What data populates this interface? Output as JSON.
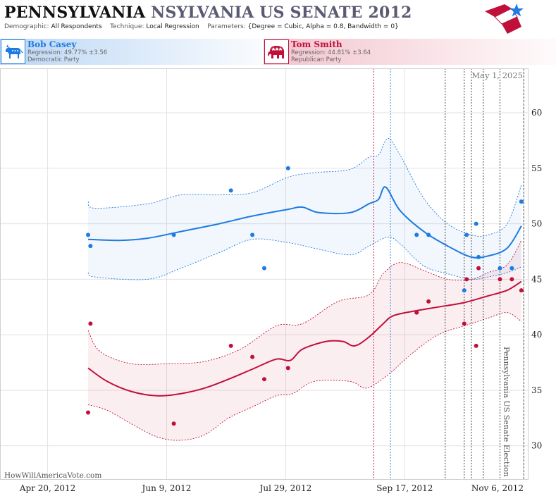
{
  "header": {
    "title_part1": "PENNSYLVANIA",
    "title_part2": "NSYLVANIA US SENATE 2012",
    "demographic_label": "Demographic:",
    "demographic_value": "All Respondents",
    "technique_label": "Technique:",
    "technique_value": "Local Regression",
    "parameters_label": "Parameters:",
    "parameters_value": "{Degree = Cubic, Alpha = 0.8, Bandwidth = 0}"
  },
  "candidates": {
    "dem": {
      "name": "Bob Casey",
      "regression": "Regression: 49.77% ±3.56",
      "party": "Democratic Party",
      "color": "#1e7be0"
    },
    "rep": {
      "name": "Tom Smith",
      "regression": "Regression: 44.81% ±3.64",
      "party": "Republican Party",
      "color": "#c0103a"
    }
  },
  "chart_data": {
    "type": "scatter",
    "date_label": "May 1, 2025",
    "watermark": "HowWillAmericaVote.com",
    "election_label": "Pennsylvania US Senate Election",
    "x_ticks": [
      "2012-04-20",
      "2012-06-09",
      "2012-07-29",
      "2012-09-17",
      "2012-11-06"
    ],
    "x_tick_labels": [
      "Apr 20, 2012",
      "Jun 9, 2012",
      "Jul 29, 2012",
      "Sep 17, 2012",
      "Nov 6, 2012"
    ],
    "xlim": [
      "2012-03-31",
      "2012-11-08"
    ],
    "y_ticks": [
      30,
      35,
      40,
      45,
      50,
      55,
      60
    ],
    "ylim": [
      27,
      64
    ],
    "grid": true,
    "election_day": "2012-11-06",
    "event_lines": [
      {
        "date": "2012-09-04",
        "color": "#c0103a"
      },
      {
        "date": "2012-09-11",
        "color": "#1e7be0"
      },
      {
        "date": "2012-10-04",
        "color": "#333333"
      },
      {
        "date": "2012-10-12",
        "color": "#333333"
      },
      {
        "date": "2012-10-15",
        "color": "#333333"
      },
      {
        "date": "2012-10-20",
        "color": "#333333"
      },
      {
        "date": "2012-10-27",
        "color": "#333333"
      }
    ],
    "series": [
      {
        "name": "Bob Casey",
        "color": "#1e7be0",
        "points": [
          {
            "x": "2012-05-07",
            "y": 49
          },
          {
            "x": "2012-05-08",
            "y": 48
          },
          {
            "x": "2012-06-12",
            "y": 49
          },
          {
            "x": "2012-07-06",
            "y": 53
          },
          {
            "x": "2012-07-15",
            "y": 49
          },
          {
            "x": "2012-07-20",
            "y": 46
          },
          {
            "x": "2012-07-30",
            "y": 55
          },
          {
            "x": "2012-09-22",
            "y": 49
          },
          {
            "x": "2012-09-27",
            "y": 49
          },
          {
            "x": "2012-10-12",
            "y": 44
          },
          {
            "x": "2012-10-13",
            "y": 49
          },
          {
            "x": "2012-10-17",
            "y": 50
          },
          {
            "x": "2012-10-18",
            "y": 47
          },
          {
            "x": "2012-10-27",
            "y": 46
          },
          {
            "x": "2012-11-01",
            "y": 46
          },
          {
            "x": "2012-11-05",
            "y": 52
          }
        ],
        "trend": [
          {
            "x": "2012-05-07",
            "y": 48.6
          },
          {
            "x": "2012-05-20",
            "y": 48.5
          },
          {
            "x": "2012-06-01",
            "y": 48.7
          },
          {
            "x": "2012-06-15",
            "y": 49.3
          },
          {
            "x": "2012-07-01",
            "y": 50.0
          },
          {
            "x": "2012-07-15",
            "y": 50.7
          },
          {
            "x": "2012-07-30",
            "y": 51.3
          },
          {
            "x": "2012-08-05",
            "y": 51.5
          },
          {
            "x": "2012-08-12",
            "y": 51.0
          },
          {
            "x": "2012-08-25",
            "y": 51.0
          },
          {
            "x": "2012-09-02",
            "y": 51.8
          },
          {
            "x": "2012-09-06",
            "y": 52.2
          },
          {
            "x": "2012-09-09",
            "y": 53.3
          },
          {
            "x": "2012-09-15",
            "y": 51.2
          },
          {
            "x": "2012-09-25",
            "y": 49.3
          },
          {
            "x": "2012-10-05",
            "y": 48.0
          },
          {
            "x": "2012-10-15",
            "y": 47.0
          },
          {
            "x": "2012-10-22",
            "y": 47.1
          },
          {
            "x": "2012-10-30",
            "y": 47.8
          },
          {
            "x": "2012-11-05",
            "y": 49.8
          }
        ],
        "upper": [
          {
            "x": "2012-05-07",
            "y": 52.0
          },
          {
            "x": "2012-05-10",
            "y": 51.4
          },
          {
            "x": "2012-06-01",
            "y": 51.8
          },
          {
            "x": "2012-06-15",
            "y": 52.6
          },
          {
            "x": "2012-07-01",
            "y": 52.6
          },
          {
            "x": "2012-07-15",
            "y": 52.8
          },
          {
            "x": "2012-07-30",
            "y": 54.2
          },
          {
            "x": "2012-08-10",
            "y": 54.6
          },
          {
            "x": "2012-08-25",
            "y": 54.9
          },
          {
            "x": "2012-09-02",
            "y": 56.0
          },
          {
            "x": "2012-09-06",
            "y": 56.2
          },
          {
            "x": "2012-09-10",
            "y": 57.7
          },
          {
            "x": "2012-09-15",
            "y": 56.2
          },
          {
            "x": "2012-09-25",
            "y": 52.3
          },
          {
            "x": "2012-10-05",
            "y": 50.0
          },
          {
            "x": "2012-10-15",
            "y": 49.0
          },
          {
            "x": "2012-10-22",
            "y": 49.0
          },
          {
            "x": "2012-10-30",
            "y": 50.0
          },
          {
            "x": "2012-11-05",
            "y": 53.5
          }
        ],
        "lower": [
          {
            "x": "2012-05-07",
            "y": 45.6
          },
          {
            "x": "2012-05-10",
            "y": 45.2
          },
          {
            "x": "2012-06-01",
            "y": 45.0
          },
          {
            "x": "2012-06-15",
            "y": 46.0
          },
          {
            "x": "2012-07-01",
            "y": 47.4
          },
          {
            "x": "2012-07-15",
            "y": 48.6
          },
          {
            "x": "2012-07-30",
            "y": 48.3
          },
          {
            "x": "2012-08-10",
            "y": 47.8
          },
          {
            "x": "2012-08-25",
            "y": 47.2
          },
          {
            "x": "2012-09-02",
            "y": 48.0
          },
          {
            "x": "2012-09-10",
            "y": 48.8
          },
          {
            "x": "2012-09-15",
            "y": 48.2
          },
          {
            "x": "2012-09-25",
            "y": 46.2
          },
          {
            "x": "2012-10-05",
            "y": 45.5
          },
          {
            "x": "2012-10-15",
            "y": 45.0
          },
          {
            "x": "2012-10-22",
            "y": 45.2
          },
          {
            "x": "2012-10-30",
            "y": 45.6
          },
          {
            "x": "2012-11-05",
            "y": 46.1
          }
        ]
      },
      {
        "name": "Tom Smith",
        "color": "#c0103a",
        "points": [
          {
            "x": "2012-05-07",
            "y": 33
          },
          {
            "x": "2012-05-08",
            "y": 41
          },
          {
            "x": "2012-06-12",
            "y": 32
          },
          {
            "x": "2012-07-06",
            "y": 39
          },
          {
            "x": "2012-07-15",
            "y": 38
          },
          {
            "x": "2012-07-20",
            "y": 36
          },
          {
            "x": "2012-07-30",
            "y": 37
          },
          {
            "x": "2012-09-22",
            "y": 42
          },
          {
            "x": "2012-09-27",
            "y": 43
          },
          {
            "x": "2012-10-12",
            "y": 41
          },
          {
            "x": "2012-10-13",
            "y": 45
          },
          {
            "x": "2012-10-17",
            "y": 39
          },
          {
            "x": "2012-10-18",
            "y": 46
          },
          {
            "x": "2012-10-27",
            "y": 45
          },
          {
            "x": "2012-11-01",
            "y": 45
          },
          {
            "x": "2012-11-05",
            "y": 44
          }
        ],
        "trend": [
          {
            "x": "2012-05-07",
            "y": 37.0
          },
          {
            "x": "2012-05-15",
            "y": 35.8
          },
          {
            "x": "2012-05-25",
            "y": 34.9
          },
          {
            "x": "2012-06-05",
            "y": 34.5
          },
          {
            "x": "2012-06-15",
            "y": 34.7
          },
          {
            "x": "2012-06-25",
            "y": 35.2
          },
          {
            "x": "2012-07-05",
            "y": 36.0
          },
          {
            "x": "2012-07-15",
            "y": 36.9
          },
          {
            "x": "2012-07-25",
            "y": 37.8
          },
          {
            "x": "2012-07-31",
            "y": 37.7
          },
          {
            "x": "2012-08-05",
            "y": 38.7
          },
          {
            "x": "2012-08-15",
            "y": 39.4
          },
          {
            "x": "2012-08-22",
            "y": 39.4
          },
          {
            "x": "2012-08-27",
            "y": 39.0
          },
          {
            "x": "2012-09-02",
            "y": 39.8
          },
          {
            "x": "2012-09-08",
            "y": 41.0
          },
          {
            "x": "2012-09-12",
            "y": 41.7
          },
          {
            "x": "2012-09-20",
            "y": 42.1
          },
          {
            "x": "2012-10-01",
            "y": 42.5
          },
          {
            "x": "2012-10-12",
            "y": 42.9
          },
          {
            "x": "2012-10-22",
            "y": 43.5
          },
          {
            "x": "2012-10-30",
            "y": 44.0
          },
          {
            "x": "2012-11-05",
            "y": 44.8
          }
        ],
        "upper": [
          {
            "x": "2012-05-07",
            "y": 40.4
          },
          {
            "x": "2012-05-12",
            "y": 38.5
          },
          {
            "x": "2012-05-25",
            "y": 37.4
          },
          {
            "x": "2012-06-10",
            "y": 37.4
          },
          {
            "x": "2012-06-25",
            "y": 37.6
          },
          {
            "x": "2012-07-10",
            "y": 38.7
          },
          {
            "x": "2012-07-25",
            "y": 40.8
          },
          {
            "x": "2012-08-05",
            "y": 41.0
          },
          {
            "x": "2012-08-20",
            "y": 43.0
          },
          {
            "x": "2012-09-02",
            "y": 43.6
          },
          {
            "x": "2012-09-08",
            "y": 45.5
          },
          {
            "x": "2012-09-15",
            "y": 46.5
          },
          {
            "x": "2012-09-25",
            "y": 45.8
          },
          {
            "x": "2012-10-05",
            "y": 45.0
          },
          {
            "x": "2012-10-15",
            "y": 45.0
          },
          {
            "x": "2012-10-22",
            "y": 45.6
          },
          {
            "x": "2012-10-30",
            "y": 46.3
          },
          {
            "x": "2012-11-05",
            "y": 48.5
          }
        ],
        "lower": [
          {
            "x": "2012-05-07",
            "y": 33.7
          },
          {
            "x": "2012-05-15",
            "y": 33.2
          },
          {
            "x": "2012-05-25",
            "y": 32.0
          },
          {
            "x": "2012-06-05",
            "y": 30.8
          },
          {
            "x": "2012-06-15",
            "y": 30.5
          },
          {
            "x": "2012-06-25",
            "y": 31.0
          },
          {
            "x": "2012-07-05",
            "y": 32.5
          },
          {
            "x": "2012-07-15",
            "y": 33.5
          },
          {
            "x": "2012-07-25",
            "y": 34.5
          },
          {
            "x": "2012-08-01",
            "y": 34.7
          },
          {
            "x": "2012-08-10",
            "y": 35.8
          },
          {
            "x": "2012-08-25",
            "y": 35.8
          },
          {
            "x": "2012-09-01",
            "y": 35.2
          },
          {
            "x": "2012-09-10",
            "y": 36.4
          },
          {
            "x": "2012-09-20",
            "y": 38.3
          },
          {
            "x": "2012-10-01",
            "y": 40.0
          },
          {
            "x": "2012-10-12",
            "y": 40.8
          },
          {
            "x": "2012-10-22",
            "y": 41.5
          },
          {
            "x": "2012-10-30",
            "y": 42.0
          },
          {
            "x": "2012-11-05",
            "y": 41.2
          }
        ]
      }
    ]
  }
}
